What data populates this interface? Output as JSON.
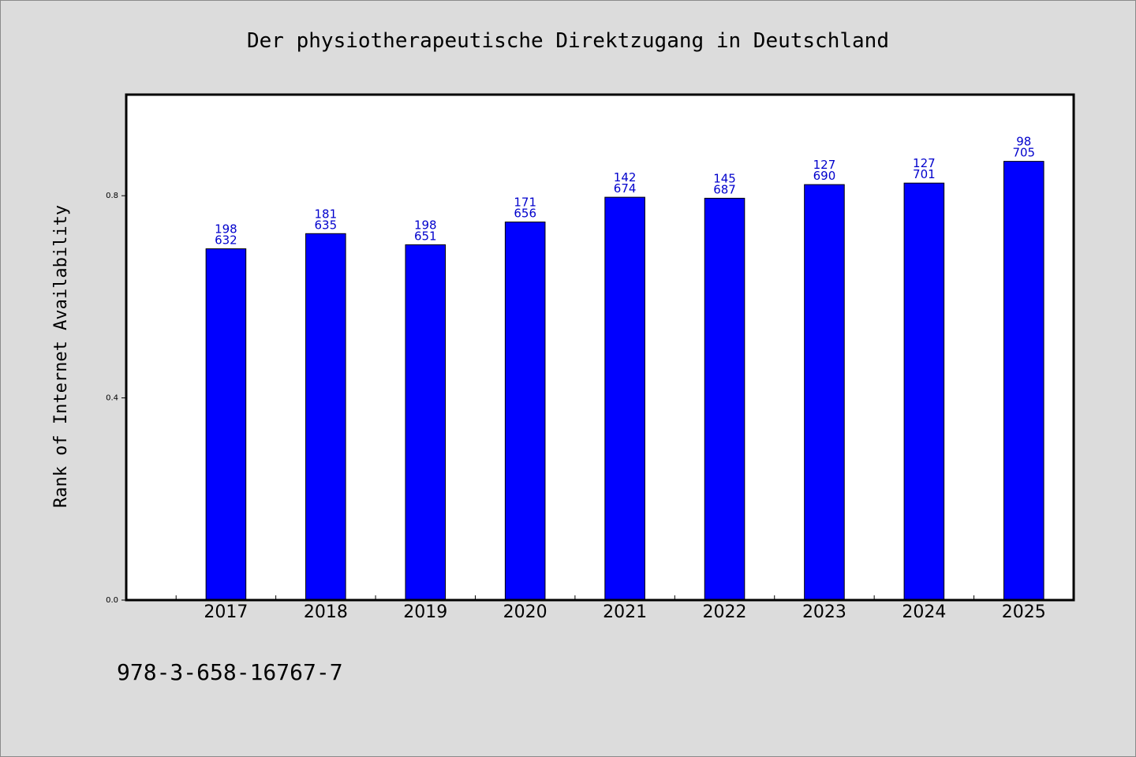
{
  "chart_data": {
    "type": "bar",
    "title": "Der physiotherapeutische Direktzugang in Deutschland",
    "ylabel": "Rank of Internet Availability",
    "xlabel": "",
    "categories": [
      "2017",
      "2018",
      "2019",
      "2020",
      "2021",
      "2022",
      "2023",
      "2024",
      "2025"
    ],
    "values": [
      0.695,
      0.725,
      0.703,
      0.748,
      0.797,
      0.795,
      0.822,
      0.825,
      0.868
    ],
    "data_labels": [
      [
        "198",
        "632"
      ],
      [
        "181",
        "635"
      ],
      [
        "198",
        "651"
      ],
      [
        "171",
        "656"
      ],
      [
        "142",
        "674"
      ],
      [
        "145",
        "687"
      ],
      [
        "127",
        "690"
      ],
      [
        "127",
        "701"
      ],
      [
        "98",
        "705"
      ]
    ],
    "ylim": [
      0,
      1.0
    ],
    "yticks": [
      "0.0",
      "0.4",
      "0.8"
    ],
    "ytick_values": [
      0.0,
      0.4,
      0.8
    ],
    "xlim": [
      -1,
      8.5
    ],
    "grid": false,
    "colors": {
      "bar": "#0000ff",
      "data_label": "#0000cc",
      "background": "#dcdcdc",
      "plot_area": "#ffffff"
    }
  },
  "footer": {
    "isbn": "978-3-658-16767-7"
  }
}
